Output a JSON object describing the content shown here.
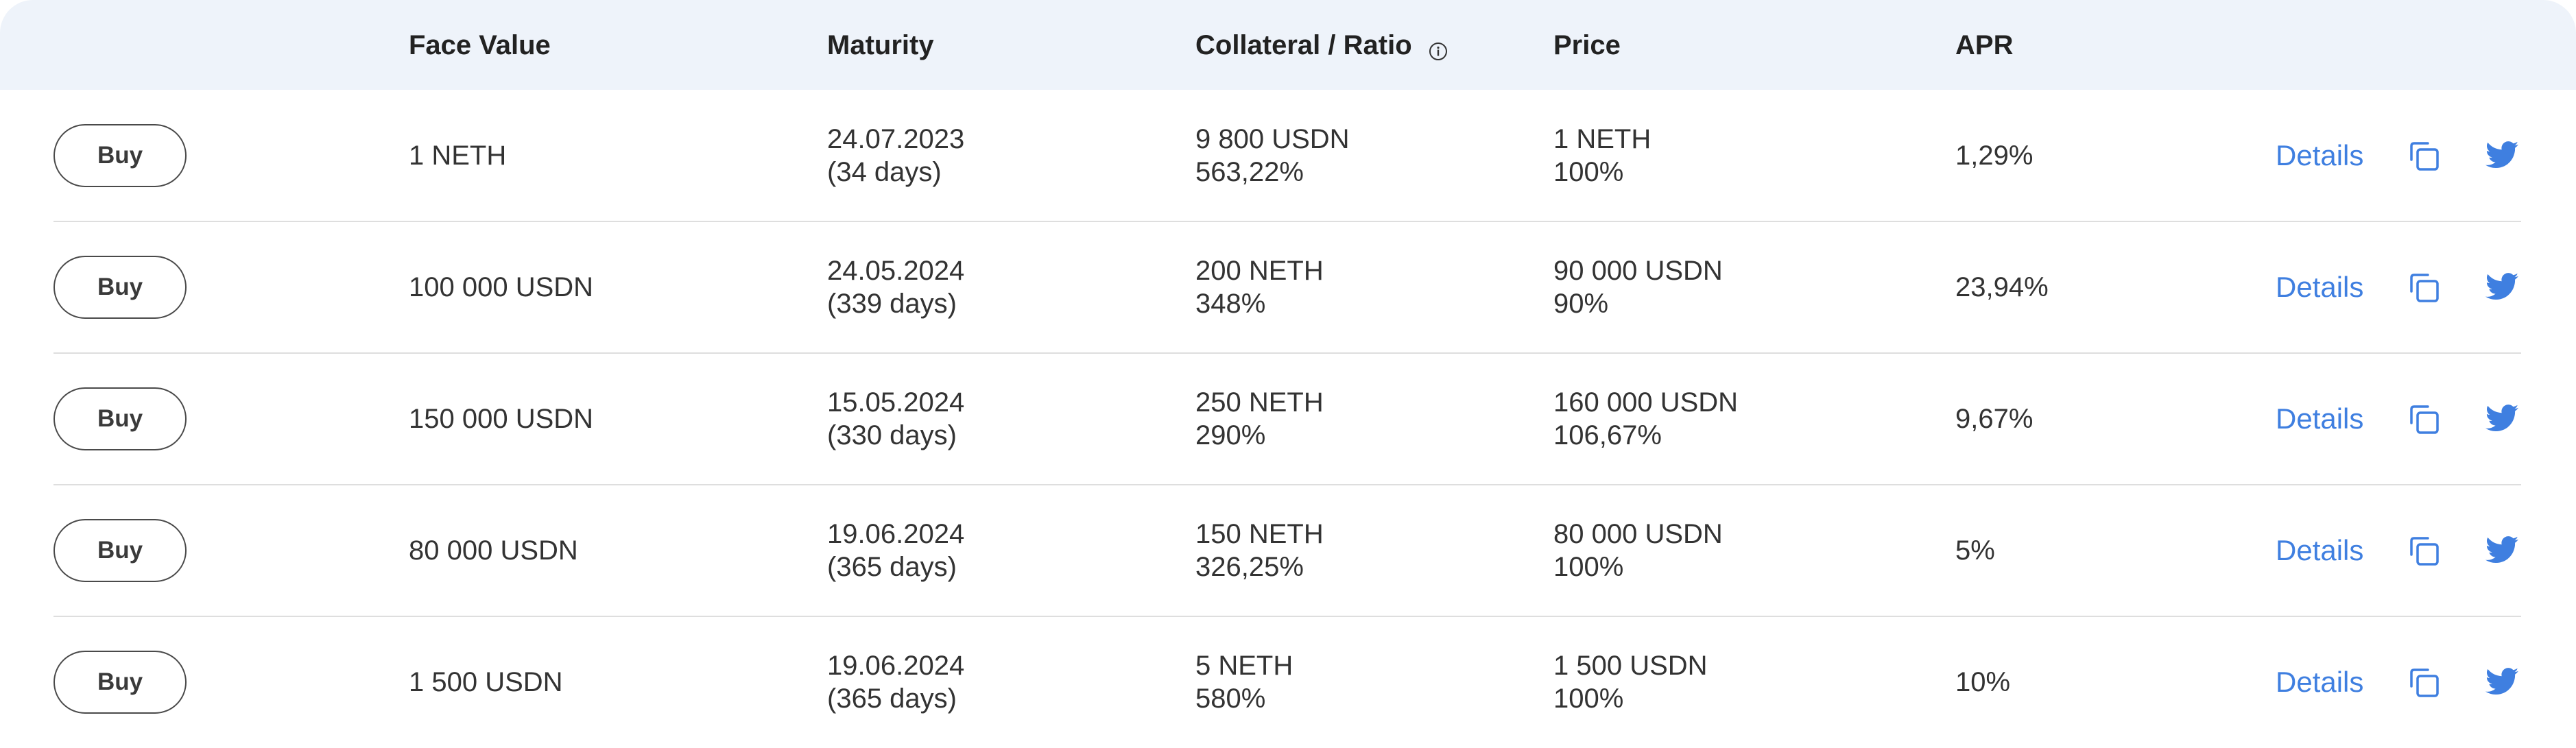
{
  "headers": {
    "face_value": "Face Value",
    "maturity": "Maturity",
    "collateral_ratio": "Collateral / Ratio",
    "price": "Price",
    "apr": "APR"
  },
  "icons": {
    "info": "info-icon",
    "copy": "copy-icon",
    "twitter": "twitter-icon"
  },
  "colors": {
    "header_bg": "#eef3fa",
    "link": "#3f7fe0",
    "divider": "#dedede"
  },
  "rows": [
    {
      "buy_label": "Buy",
      "face_value": "1 NETH",
      "maturity_date": "24.07.2023",
      "maturity_days": "(34 days)",
      "collateral": "9 800 USDN",
      "ratio": "563,22%",
      "price": "1 NETH",
      "price_pct": "100%",
      "apr": "1,29%",
      "details_label": "Details"
    },
    {
      "buy_label": "Buy",
      "face_value": "100 000 USDN",
      "maturity_date": "24.05.2024",
      "maturity_days": "(339 days)",
      "collateral": "200 NETH",
      "ratio": "348%",
      "price": "90 000 USDN",
      "price_pct": "90%",
      "apr": "23,94%",
      "details_label": "Details"
    },
    {
      "buy_label": "Buy",
      "face_value": "150 000 USDN",
      "maturity_date": "15.05.2024",
      "maturity_days": "(330 days)",
      "collateral": "250 NETH",
      "ratio": "290%",
      "price": "160 000 USDN",
      "price_pct": "106,67%",
      "apr": "9,67%",
      "details_label": "Details"
    },
    {
      "buy_label": "Buy",
      "face_value": "80 000 USDN",
      "maturity_date": "19.06.2024",
      "maturity_days": "(365 days)",
      "collateral": "150 NETH",
      "ratio": "326,25%",
      "price": "80 000 USDN",
      "price_pct": "100%",
      "apr": "5%",
      "details_label": "Details"
    },
    {
      "buy_label": "Buy",
      "face_value": "1 500 USDN",
      "maturity_date": "19.06.2024",
      "maturity_days": "(365 days)",
      "collateral": "5 NETH",
      "ratio": "580%",
      "price": "1 500 USDN",
      "price_pct": "100%",
      "apr": "10%",
      "details_label": "Details"
    }
  ]
}
